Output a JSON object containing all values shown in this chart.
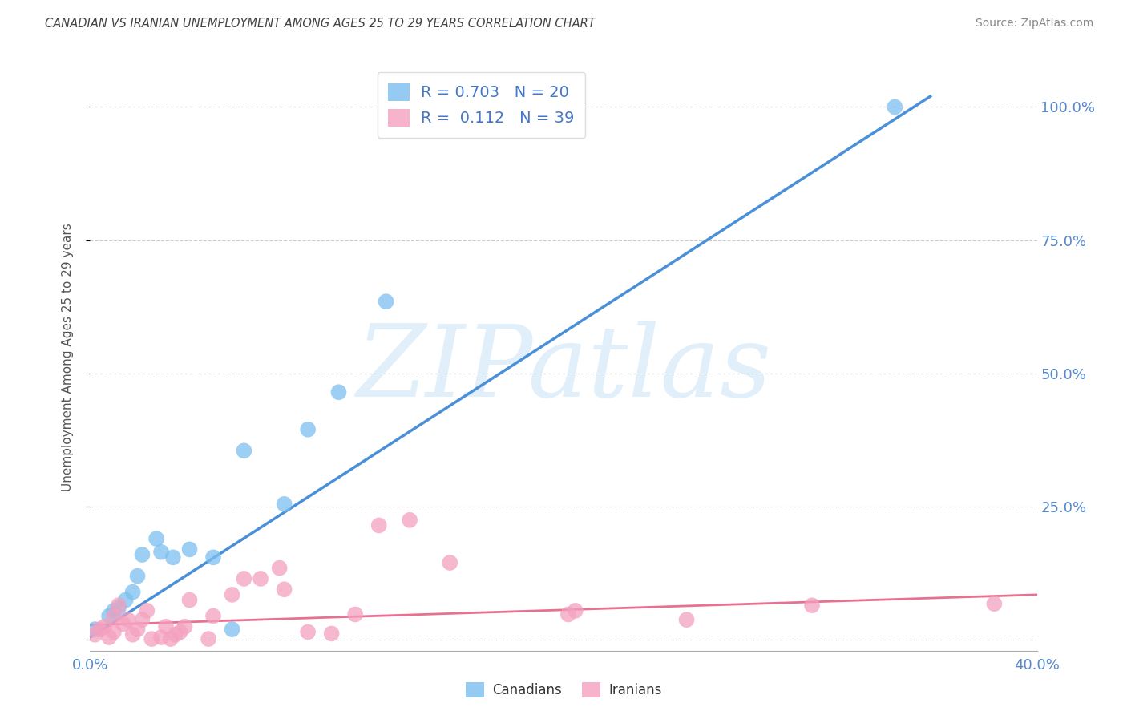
{
  "title": "CANADIAN VS IRANIAN UNEMPLOYMENT AMONG AGES 25 TO 29 YEARS CORRELATION CHART",
  "source": "Source: ZipAtlas.com",
  "ylabel": "Unemployment Among Ages 25 to 29 years",
  "xlim": [
    0.0,
    0.4
  ],
  "ylim": [
    -0.02,
    1.08
  ],
  "yticks": [
    0.0,
    0.25,
    0.5,
    0.75,
    1.0
  ],
  "ytick_labels": [
    "",
    "25.0%",
    "50.0%",
    "75.0%",
    "100.0%"
  ],
  "xticks": [
    0.0,
    0.1,
    0.2,
    0.3,
    0.4
  ],
  "xtick_labels": [
    "0.0%",
    "",
    "",
    "",
    "40.0%"
  ],
  "legend_R_canadian": "0.703",
  "legend_N_canadian": "20",
  "legend_R_iranian": "0.112",
  "legend_N_iranian": "39",
  "canadian_color": "#7bbfef",
  "iranian_color": "#f4a0be",
  "trend_canadian_color": "#4a90d9",
  "trend_iranian_color": "#e87090",
  "watermark_text": "ZIPatlas",
  "canadian_points": [
    [
      0.002,
      0.02
    ],
    [
      0.008,
      0.045
    ],
    [
      0.01,
      0.055
    ],
    [
      0.012,
      0.06
    ],
    [
      0.015,
      0.075
    ],
    [
      0.018,
      0.09
    ],
    [
      0.02,
      0.12
    ],
    [
      0.022,
      0.16
    ],
    [
      0.028,
      0.19
    ],
    [
      0.03,
      0.165
    ],
    [
      0.035,
      0.155
    ],
    [
      0.042,
      0.17
    ],
    [
      0.052,
      0.155
    ],
    [
      0.06,
      0.02
    ],
    [
      0.065,
      0.355
    ],
    [
      0.082,
      0.255
    ],
    [
      0.092,
      0.395
    ],
    [
      0.105,
      0.465
    ],
    [
      0.125,
      0.635
    ],
    [
      0.34,
      1.0
    ]
  ],
  "iranian_points": [
    [
      0.002,
      0.01
    ],
    [
      0.004,
      0.02
    ],
    [
      0.006,
      0.025
    ],
    [
      0.008,
      0.005
    ],
    [
      0.01,
      0.015
    ],
    [
      0.01,
      0.045
    ],
    [
      0.012,
      0.065
    ],
    [
      0.014,
      0.03
    ],
    [
      0.016,
      0.038
    ],
    [
      0.018,
      0.01
    ],
    [
      0.02,
      0.02
    ],
    [
      0.022,
      0.038
    ],
    [
      0.024,
      0.055
    ],
    [
      0.026,
      0.002
    ],
    [
      0.03,
      0.005
    ],
    [
      0.032,
      0.025
    ],
    [
      0.034,
      0.002
    ],
    [
      0.036,
      0.01
    ],
    [
      0.038,
      0.015
    ],
    [
      0.04,
      0.025
    ],
    [
      0.042,
      0.075
    ],
    [
      0.05,
      0.002
    ],
    [
      0.052,
      0.045
    ],
    [
      0.06,
      0.085
    ],
    [
      0.065,
      0.115
    ],
    [
      0.072,
      0.115
    ],
    [
      0.08,
      0.135
    ],
    [
      0.082,
      0.095
    ],
    [
      0.092,
      0.015
    ],
    [
      0.102,
      0.012
    ],
    [
      0.112,
      0.048
    ],
    [
      0.122,
      0.215
    ],
    [
      0.135,
      0.225
    ],
    [
      0.152,
      0.145
    ],
    [
      0.202,
      0.048
    ],
    [
      0.205,
      0.055
    ],
    [
      0.252,
      0.038
    ],
    [
      0.305,
      0.065
    ],
    [
      0.382,
      0.068
    ]
  ],
  "canadian_trend_x": [
    0.0,
    0.355
  ],
  "canadian_trend_y": [
    0.005,
    1.02
  ],
  "iranian_trend_x": [
    0.0,
    0.4
  ],
  "iranian_trend_y": [
    0.028,
    0.085
  ]
}
